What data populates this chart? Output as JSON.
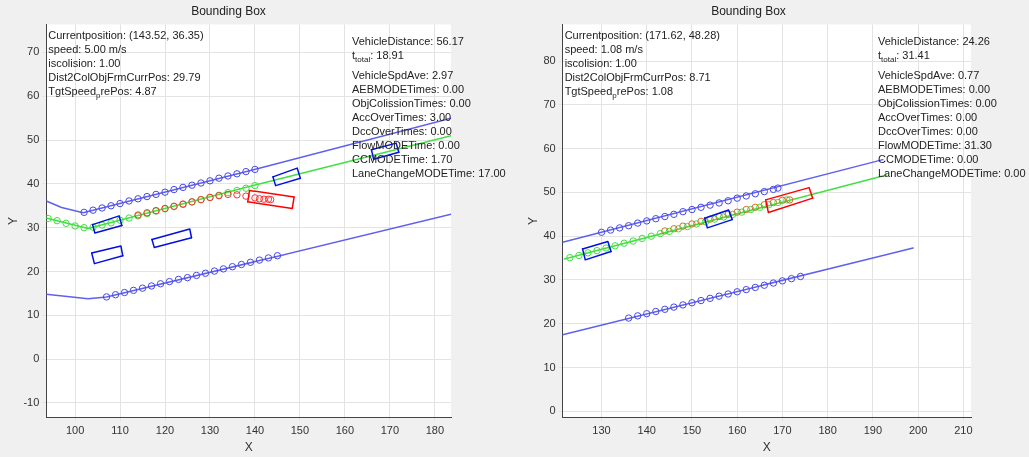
{
  "chart_data": [
    {
      "type": "line",
      "title": "Bounding Box",
      "xlabel": "X",
      "ylabel": "Y",
      "xlim": [
        93.6,
        183.6
      ],
      "ylim": [
        -13.3,
        76.4
      ],
      "xticks": [
        100,
        110,
        120,
        130,
        140,
        150,
        160,
        170,
        180
      ],
      "yticks": [
        -10,
        0,
        10,
        20,
        30,
        40,
        50,
        60,
        70
      ],
      "grid": true,
      "legend": false,
      "annotations": [
        "Currentposition: (143.52, 36.35)\nspeed: 5.00 m/s\niscolision: 1.00\nDist2ColObjFrmCurrPos: 29.79\nTgtSpeed$_{p}$rePos: 4.87",
        "VehicleDistance: 56.17\nt$_{total}$: 18.91\nVehicleSpdAve: 2.97\nAEBMODETimes: 0.00\nObjColissionTimes: 0.00\nAccOverTimes: 3.00\nDccOverTimes: 0.00\nFlowMODETime: 0.00\nCCMODETime: 1.70\nLaneChangeMODETime: 17.00"
      ],
      "series": [
        {
          "color": "#6060f0",
          "x": [
            93.6,
            97,
            101.8,
            139.9,
            183.6
          ],
          "values": [
            36.1,
            34.6,
            33.4,
            43.3,
            55.0
          ]
        },
        {
          "color": "#6060f0",
          "x": [
            93.6,
            102.9,
            107,
            145.1,
            183.6
          ],
          "values": [
            14.8,
            13.8,
            14.2,
            23.5,
            33.1
          ]
        },
        {
          "type": "scatter",
          "color": "#4848e8",
          "x": [
            102,
            104,
            106,
            108,
            110,
            112,
            114,
            116,
            118,
            120,
            122,
            124,
            126,
            128,
            130,
            132,
            134,
            136,
            138,
            140
          ],
          "values": [
            33.5,
            34.0,
            34.5,
            35.0,
            35.5,
            36.1,
            36.6,
            37.1,
            37.6,
            38.1,
            38.7,
            39.2,
            39.7,
            40.2,
            40.7,
            41.3,
            41.8,
            42.3,
            42.8,
            43.3
          ]
        },
        {
          "type": "scatter",
          "color": "#4848e8",
          "x": [
            107,
            109,
            111,
            113,
            115,
            117,
            119,
            121,
            123,
            125,
            127,
            129,
            131,
            133,
            135,
            137,
            139,
            141,
            143,
            145
          ],
          "values": [
            14.2,
            14.7,
            15.2,
            15.7,
            16.2,
            16.7,
            17.2,
            17.7,
            18.2,
            18.6,
            19.1,
            19.6,
            20.1,
            20.6,
            21.1,
            21.6,
            22.1,
            22.6,
            23.1,
            23.6
          ]
        },
        {
          "color": "#40e040",
          "x": [
            93.6,
            102.9,
            141.4,
            183.6
          ],
          "values": [
            32.2,
            29.8,
            40.1,
            51.0
          ]
        },
        {
          "type": "scatter",
          "color": "#40e040",
          "x": [
            94,
            96,
            98,
            100,
            102,
            104,
            106,
            108,
            110,
            112,
            114,
            116,
            118,
            120,
            122,
            124,
            126,
            128,
            130,
            132,
            134,
            136,
            138,
            140
          ],
          "values": [
            32.1,
            31.6,
            31.0,
            30.4,
            30.0,
            30.1,
            30.6,
            31.1,
            31.7,
            32.2,
            32.7,
            33.2,
            33.8,
            34.3,
            34.8,
            35.3,
            35.9,
            36.4,
            36.9,
            37.4,
            38.0,
            38.5,
            39.0,
            39.6
          ]
        },
        {
          "type": "scatter",
          "color": "#ff3030",
          "x": [
            114,
            116,
            118,
            120,
            122,
            124,
            126,
            128,
            130,
            132,
            134,
            136,
            138,
            140,
            141,
            142,
            143,
            143.5
          ],
          "values": [
            32.9,
            33.4,
            33.9,
            34.4,
            34.9,
            35.4,
            35.9,
            36.4,
            36.9,
            37.3,
            37.6,
            37.5,
            37.2,
            36.8,
            36.6,
            36.5,
            36.5,
            36.4
          ]
        },
        {
          "color": "#0010e0",
          "x": [
            103.9,
            109.8,
            110.4
          ],
          "values": [
            30.7,
            32.7,
            30.5
          ]
        },
        {
          "color": "#0010e0",
          "x": [
            103.9,
            104.4,
            110.4
          ],
          "values": [
            30.7,
            28.8,
            30.5
          ]
        },
        {
          "color": "#0010e0",
          "x": [
            103.7,
            110.2,
            110.6
          ],
          "values": [
            24.2,
            25.8,
            23.6
          ]
        },
        {
          "color": "#0010e0",
          "x": [
            103.7,
            104.3,
            110.6
          ],
          "values": [
            24.2,
            21.8,
            23.6
          ]
        },
        {
          "color": "#0010e0",
          "x": [
            117.1,
            125.5,
            125.9
          ],
          "values": [
            27.3,
            29.7,
            27.7
          ]
        },
        {
          "color": "#0010e0",
          "x": [
            117.1,
            117.6,
            125.9
          ],
          "values": [
            27.3,
            25.5,
            27.7
          ]
        },
        {
          "color": "#0010e0",
          "x": [
            144.0,
            149.4,
            150.1
          ],
          "values": [
            41.6,
            43.6,
            41.3
          ]
        },
        {
          "color": "#0010e0",
          "x": [
            144.0,
            144.6,
            150.1
          ],
          "values": [
            41.6,
            39.6,
            41.3
          ]
        },
        {
          "color": "#0010e0",
          "x": [
            165.9,
            171.4,
            172.0
          ],
          "values": [
            47.8,
            49.3,
            47.2
          ]
        },
        {
          "color": "#0010e0",
          "x": [
            165.9,
            166.4,
            172.0
          ],
          "values": [
            47.8,
            45.6,
            47.2
          ]
        },
        {
          "color": "#ff0000",
          "x": [
            138.4,
            138.8,
            148.7
          ],
          "values": [
            35.9,
            38.5,
            37.0
          ]
        },
        {
          "color": "#ff0000",
          "x": [
            138.4,
            148.3,
            148.7
          ],
          "values": [
            35.9,
            34.4,
            37.0
          ]
        }
      ]
    },
    {
      "type": "line",
      "title": "Bounding Box",
      "xlabel": "X",
      "ylabel": "Y",
      "xlim": [
        121.4,
        211.7
      ],
      "ylim": [
        -1.4,
        88.4
      ],
      "xticks": [
        130,
        140,
        150,
        160,
        170,
        180,
        190,
        200,
        210
      ],
      "yticks": [
        0,
        10,
        20,
        30,
        40,
        50,
        60,
        70,
        80
      ],
      "grid": true,
      "legend": false,
      "annotations": [
        "Currentposition: (171.62, 48.28)\nspeed: 1.08 m/s\niscolision: 1.00\nDist2ColObjFrmCurrPos: 8.71\nTgtSpeed$_{p}$rePos: 1.08",
        "VehicleDistance: 24.26\nt$_{total}$: 31.41\nVehicleSpdAve: 0.77\nAEBMODETimes: 0.00\nObjColissionTimes: 0.00\nAccOverTimes: 0.00\nDccOverTimes: 0.00\nFlowMODETime: 31.30\nCCMODETime: 0.00\nLaneChangeMODETime: 0.00"
      ],
      "series": [
        {
          "color": "#6060f0",
          "x": [
            121.4,
            192.2
          ],
          "values": [
            38.6,
            57.5
          ]
        },
        {
          "color": "#6060f0",
          "x": [
            121.4,
            198.9
          ],
          "values": [
            17.5,
            37.3
          ]
        },
        {
          "type": "scatter",
          "color": "#4848e8",
          "x": [
            130,
            132,
            134,
            136,
            138,
            140,
            142,
            144,
            146,
            148,
            150,
            152,
            154,
            156,
            158,
            160,
            162,
            164,
            166,
            168,
            169
          ],
          "values": [
            40.9,
            41.4,
            41.9,
            42.4,
            43.0,
            43.5,
            44.0,
            44.5,
            45.0,
            45.6,
            46.1,
            46.6,
            47.1,
            47.6,
            48.1,
            48.7,
            49.2,
            49.7,
            50.2,
            50.7,
            51.0
          ]
        },
        {
          "type": "scatter",
          "color": "#4848e8",
          "x": [
            136,
            138,
            140,
            142,
            144,
            146,
            148,
            150,
            152,
            154,
            156,
            158,
            160,
            162,
            164,
            166,
            168,
            170,
            172,
            174
          ],
          "values": [
            21.3,
            21.8,
            22.3,
            22.8,
            23.3,
            23.8,
            24.3,
            24.8,
            25.3,
            25.8,
            26.3,
            26.8,
            27.3,
            27.8,
            28.3,
            28.8,
            29.3,
            29.8,
            30.3,
            30.8
          ]
        },
        {
          "color": "#40e040",
          "x": [
            121.8,
            193.0
          ],
          "values": [
            34.8,
            54.0
          ]
        },
        {
          "type": "scatter",
          "color": "#40e040",
          "x": [
            123,
            125,
            127,
            129,
            131,
            133,
            135,
            137,
            139,
            141,
            143,
            145,
            147,
            149,
            151,
            153,
            155,
            157,
            159,
            161,
            163,
            165,
            167,
            169,
            171
          ],
          "values": [
            35.1,
            35.6,
            36.2,
            36.7,
            37.3,
            37.8,
            38.4,
            38.9,
            39.5,
            40.0,
            40.6,
            41.1,
            41.7,
            42.2,
            42.8,
            43.3,
            43.9,
            44.4,
            45.0,
            45.5,
            46.1,
            46.6,
            47.2,
            47.7,
            48.3
          ]
        },
        {
          "type": "scatter",
          "color": "#d07030",
          "x": [
            144,
            146,
            148,
            150,
            152,
            154,
            156,
            158,
            160,
            162,
            164,
            166,
            168,
            170,
            171.6
          ],
          "values": [
            41.2,
            41.7,
            42.3,
            42.8,
            43.4,
            43.9,
            44.5,
            45.0,
            45.5,
            46.1,
            46.6,
            47.2,
            47.7,
            48.2,
            48.3
          ]
        },
        {
          "color": "#0010e0",
          "x": [
            125.8,
            131.4,
            132.1
          ],
          "values": [
            37.1,
            38.8,
            36.5
          ]
        },
        {
          "color": "#0010e0",
          "x": [
            125.8,
            126.4,
            132.1
          ],
          "values": [
            37.1,
            34.6,
            36.5
          ]
        },
        {
          "color": "#0010e0",
          "x": [
            152.8,
            158.1,
            158.9
          ],
          "values": [
            44.1,
            46.0,
            43.8
          ]
        },
        {
          "color": "#0010e0",
          "x": [
            152.8,
            153.4,
            158.9
          ],
          "values": [
            44.1,
            41.9,
            43.8
          ]
        },
        {
          "color": "#ff0000",
          "x": [
            166.3,
            175.9,
            176.7
          ],
          "values": [
            48.3,
            51.1,
            48.7
          ]
        },
        {
          "color": "#ff0000",
          "x": [
            166.3,
            166.9,
            176.7
          ],
          "values": [
            48.3,
            45.4,
            48.7
          ]
        }
      ]
    }
  ]
}
